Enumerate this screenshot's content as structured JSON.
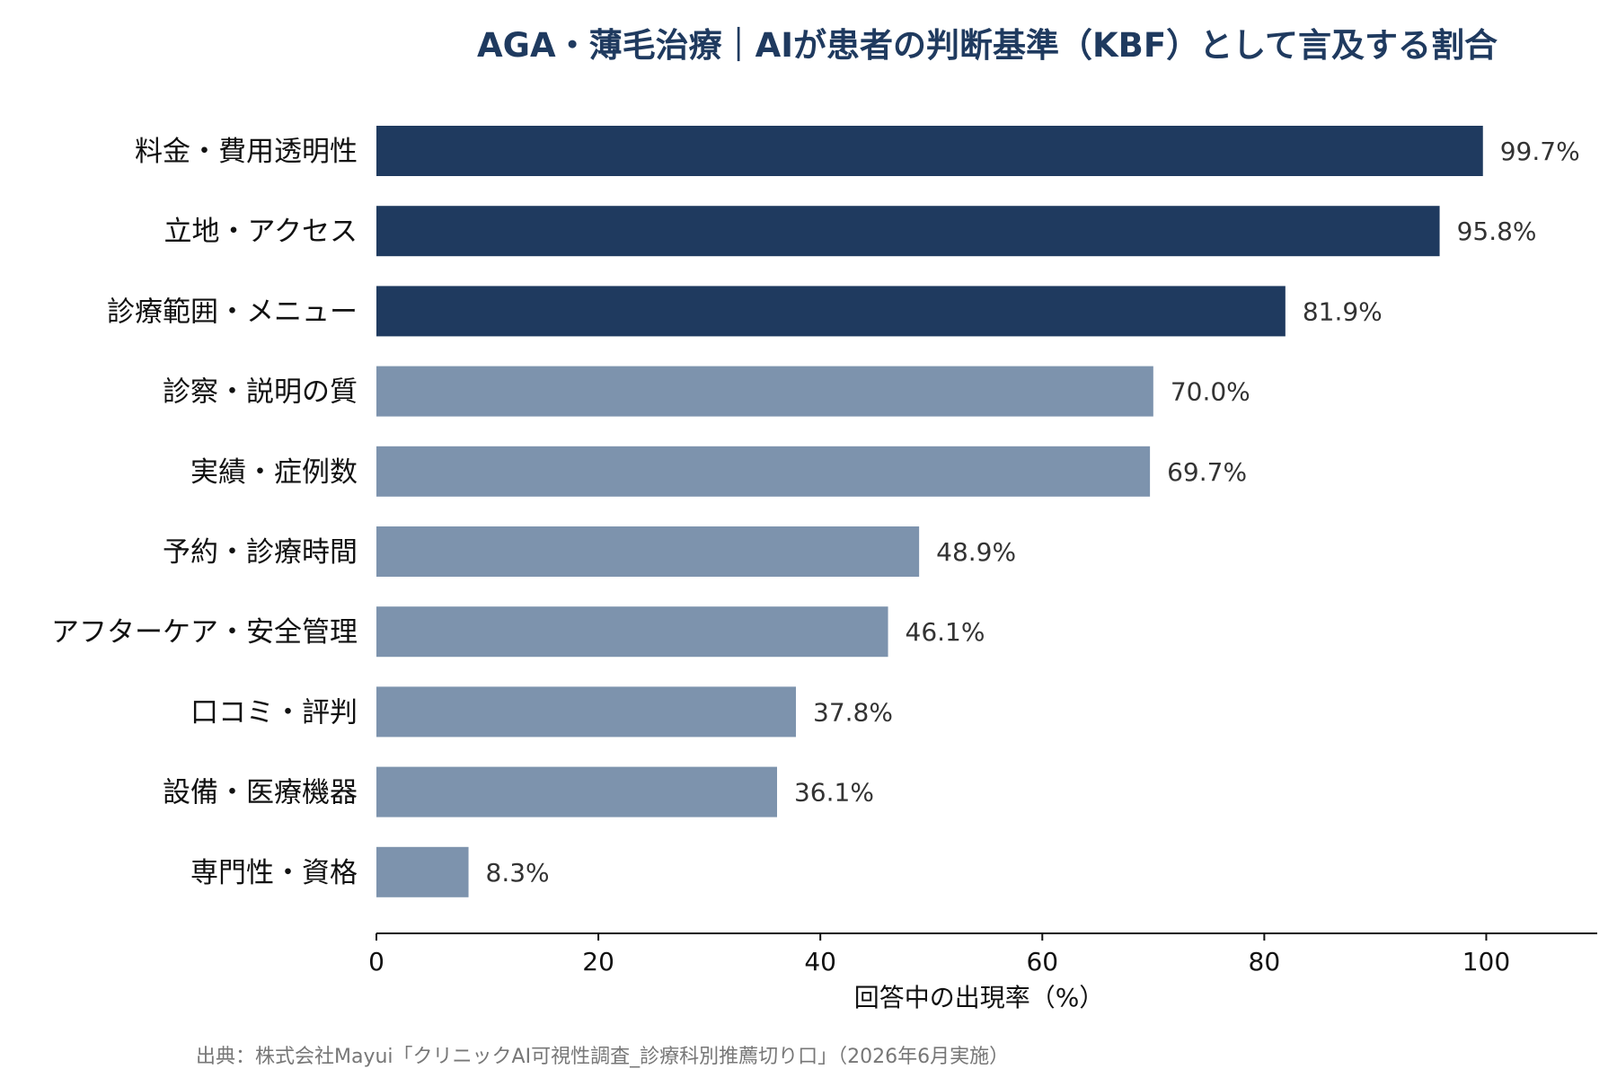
{
  "chart_data": {
    "type": "bar",
    "orientation": "horizontal",
    "title": "AGA・薄毛治療｜AIが患者の判断基準（KBF）として言及する割合",
    "xlabel": "回答中の出現率（%）",
    "ylabel": "",
    "xlim": [
      0,
      110
    ],
    "xticks": [
      0,
      20,
      40,
      60,
      80,
      100
    ],
    "grid": false,
    "categories": [
      "料金・費用透明性",
      "立地・アクセス",
      "診療範囲・メニュー",
      "診察・説明の質",
      "実績・症例数",
      "予約・診療時間",
      "アフターケア・安全管理",
      "口コミ・評判",
      "設備・医療機器",
      "専門性・資格"
    ],
    "values": [
      99.7,
      95.8,
      81.9,
      70.0,
      69.7,
      48.9,
      46.1,
      37.8,
      36.1,
      8.3
    ],
    "value_labels": [
      "99.7%",
      "95.8%",
      "81.9%",
      "70.0%",
      "69.7%",
      "48.9%",
      "46.1%",
      "37.8%",
      "36.1%",
      "8.3%"
    ],
    "highlight_count": 3,
    "colors": {
      "highlight": "#1f3a5f",
      "normal": "#7d93ad"
    }
  },
  "source": "出典：株式会社Mayui「クリニックAI可視性調査_診療科別推薦切り口」（2026年6月実施）"
}
